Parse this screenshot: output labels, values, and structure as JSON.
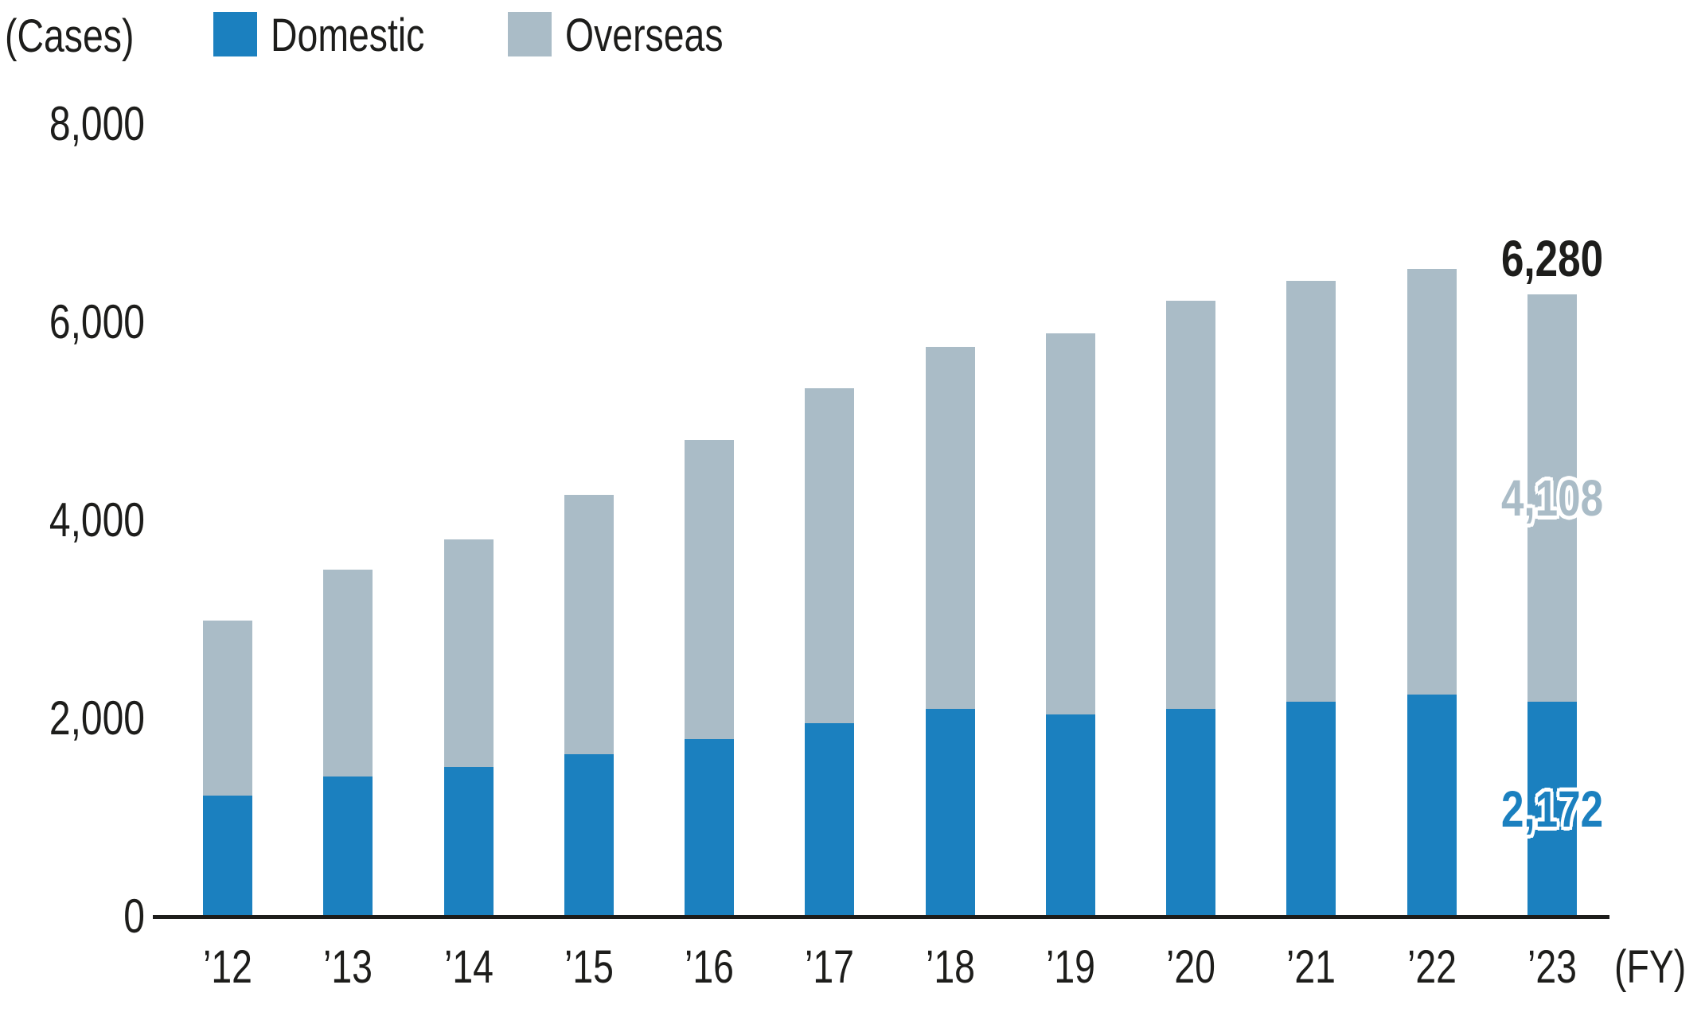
{
  "chart_data": {
    "type": "bar",
    "stacked": true,
    "title": "",
    "unit_label": "(Cases)",
    "x_axis_suffix": "(FY)",
    "grid": false,
    "legend_position": "top",
    "ylim": [
      0,
      8000
    ],
    "y_ticks": [
      {
        "value": 8000,
        "label": "8,000"
      },
      {
        "value": 6000,
        "label": "6,000"
      },
      {
        "value": 4000,
        "label": "4,000"
      },
      {
        "value": 2000,
        "label": "2,000"
      },
      {
        "value": 0,
        "label": "0"
      }
    ],
    "categories": [
      "’12",
      "’13",
      "’14",
      "’15",
      "’16",
      "’17",
      "’18",
      "’19",
      "’20",
      "’21",
      "’22",
      "’23"
    ],
    "series": [
      {
        "name": "Domestic",
        "color": "#1b80bf",
        "values": [
          1220,
          1410,
          1510,
          1640,
          1790,
          1950,
          2100,
          2040,
          2100,
          2170,
          2240,
          2172
        ]
      },
      {
        "name": "Overseas",
        "color": "#aabcc7",
        "values": [
          1770,
          2090,
          2300,
          2620,
          3020,
          3380,
          3650,
          3850,
          4120,
          4250,
          4300,
          4108
        ]
      }
    ],
    "totals": [
      2990,
      3500,
      3810,
      4260,
      4810,
      5330,
      5750,
      5890,
      6220,
      6420,
      6540,
      6280
    ],
    "annotations": [
      {
        "target": "total",
        "category": "’23",
        "label": "6,280",
        "color": "#1d1d1b"
      },
      {
        "target": "Overseas",
        "category": "’23",
        "label": "4,108",
        "color": "#aabcc7"
      },
      {
        "target": "Domestic",
        "category": "’23",
        "label": "2,172",
        "color": "#1b80bf"
      }
    ],
    "colors": {
      "axis": "#1d1d1b",
      "background": "#ffffff"
    }
  }
}
